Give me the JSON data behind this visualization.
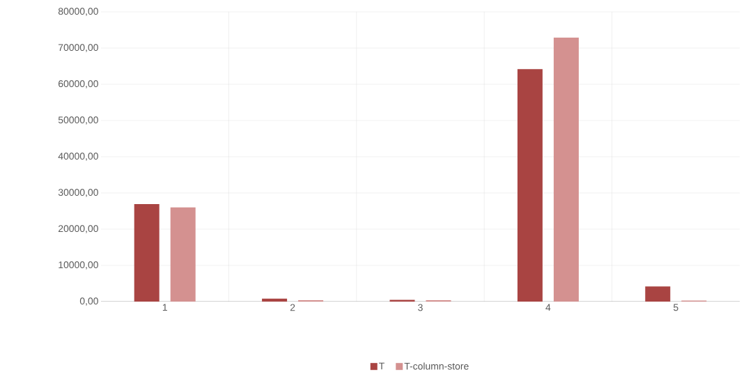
{
  "chart_data": {
    "type": "bar",
    "categories": [
      "1",
      "2",
      "3",
      "4",
      "5"
    ],
    "series": [
      {
        "name": "T",
        "color": "#a94442",
        "values": [
          26900,
          800,
          500,
          64200,
          4200
        ]
      },
      {
        "name": "T-column-store",
        "color": "#d49190",
        "values": [
          26000,
          400,
          400,
          72900,
          300
        ]
      }
    ],
    "ylim": [
      0,
      80000
    ],
    "yticks": [
      {
        "value": 0,
        "label": "0,00"
      },
      {
        "value": 10000,
        "label": "10000,00"
      },
      {
        "value": 20000,
        "label": "20000,00"
      },
      {
        "value": 30000,
        "label": "30000,00"
      },
      {
        "value": 40000,
        "label": "40000,00"
      },
      {
        "value": 50000,
        "label": "50000,00"
      },
      {
        "value": 60000,
        "label": "60000,00"
      },
      {
        "value": 70000,
        "label": "70000,00"
      },
      {
        "value": 80000,
        "label": "80000,00"
      }
    ],
    "grid": true,
    "legend": "bottom"
  }
}
